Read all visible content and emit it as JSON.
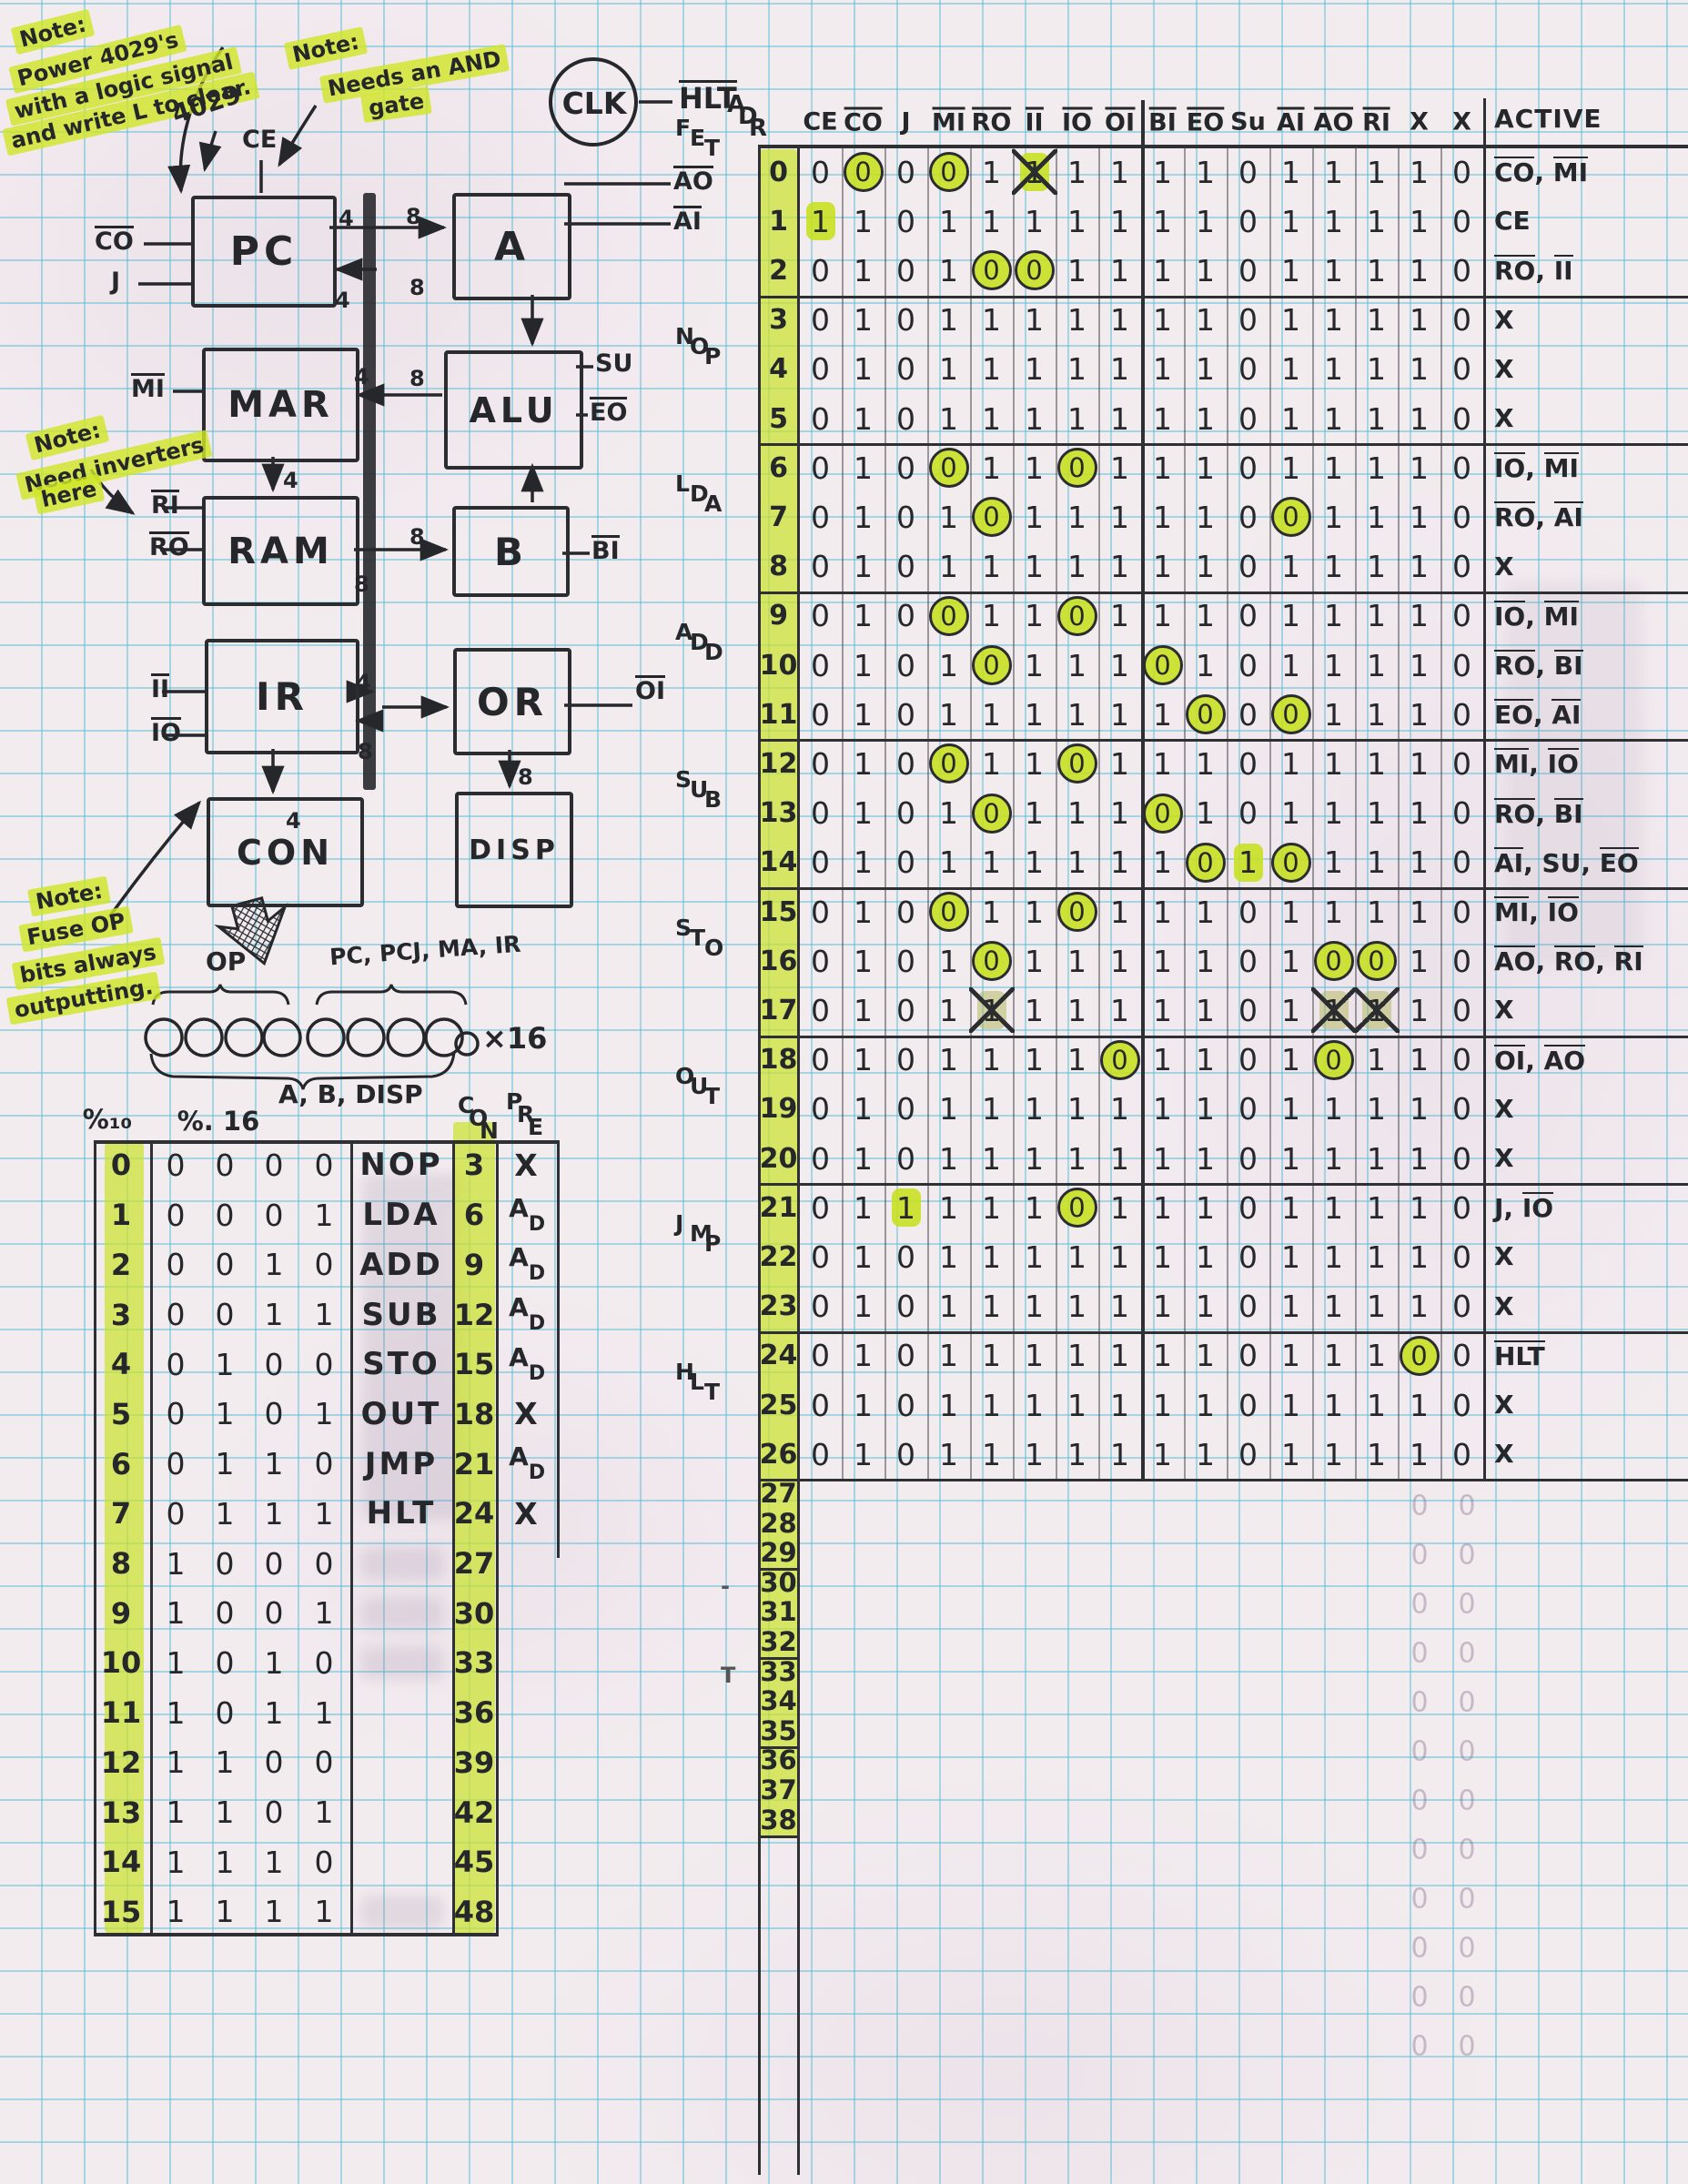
{
  "notes": {
    "power": [
      "Note:",
      "Power 4029's",
      "with a logic signal",
      "and write L to clear."
    ],
    "chip": "4029",
    "and_gate": [
      "Note:",
      "Needs an AND",
      "gate"
    ],
    "inverters": [
      "Note:",
      "Need inverters",
      "here"
    ],
    "fuse": [
      "Note:",
      "Fuse OP",
      "bits always",
      "outputting."
    ]
  },
  "clock": {
    "label": "CLK",
    "halt": "HLT"
  },
  "diagram": {
    "blocks": [
      {
        "id": "pc",
        "label": "PC"
      },
      {
        "id": "a",
        "label": "A"
      },
      {
        "id": "mar",
        "label": "MAR"
      },
      {
        "id": "alu",
        "label": "ALU"
      },
      {
        "id": "ram",
        "label": "RAM"
      },
      {
        "id": "b",
        "label": "B"
      },
      {
        "id": "ir",
        "label": "IR"
      },
      {
        "id": "or",
        "label": "OR"
      },
      {
        "id": "con",
        "label": "CON"
      },
      {
        "id": "disp",
        "label": "DISP"
      }
    ],
    "pins": [
      {
        "id": "ce",
        "t": "CE",
        "o": false
      },
      {
        "id": "co",
        "t": "CO",
        "o": true
      },
      {
        "id": "j",
        "t": "J",
        "o": false
      },
      {
        "id": "ao",
        "t": "AO",
        "o": true
      },
      {
        "id": "ai",
        "t": "AI",
        "o": true
      },
      {
        "id": "mi",
        "t": "MI",
        "o": true
      },
      {
        "id": "su",
        "t": "SU",
        "o": false
      },
      {
        "id": "eo",
        "t": "EO",
        "o": true
      },
      {
        "id": "ri",
        "t": "RI",
        "o": true
      },
      {
        "id": "ro",
        "t": "RO",
        "o": true
      },
      {
        "id": "bi",
        "t": "BI",
        "o": true
      },
      {
        "id": "ii",
        "t": "II",
        "o": true
      },
      {
        "id": "io",
        "t": "IO",
        "o": true
      },
      {
        "id": "oi",
        "t": "OI",
        "o": true
      }
    ],
    "bus_widths": [
      "4",
      "8",
      "8",
      "4",
      "4",
      "8",
      "4",
      "8",
      "8",
      "4",
      "8",
      "4",
      "8"
    ]
  },
  "word_diagram": {
    "op_label": "OP",
    "regs_label": "PC, PCJ, MA, IR",
    "bottom_label": "A, B, DISP",
    "multiplier": "×16",
    "bit_count": 8
  },
  "opcode_table": {
    "dec_header": "%₁₀",
    "hex_header": "%. 16",
    "con_header": "CON",
    "pre_header": "PRE",
    "rows": [
      {
        "dec": "0",
        "bits": [
          "0",
          "0",
          "0",
          "0"
        ],
        "mn": "NOP",
        "con": "3",
        "pre": "X"
      },
      {
        "dec": "1",
        "bits": [
          "0",
          "0",
          "0",
          "1"
        ],
        "mn": "LDA",
        "con": "6",
        "pre": "AD"
      },
      {
        "dec": "2",
        "bits": [
          "0",
          "0",
          "1",
          "0"
        ],
        "mn": "ADD",
        "con": "9",
        "pre": "AD"
      },
      {
        "dec": "3",
        "bits": [
          "0",
          "0",
          "1",
          "1"
        ],
        "mn": "SUB",
        "con": "12",
        "pre": "AD"
      },
      {
        "dec": "4",
        "bits": [
          "0",
          "1",
          "0",
          "0"
        ],
        "mn": "STO",
        "con": "15",
        "pre": "AD"
      },
      {
        "dec": "5",
        "bits": [
          "0",
          "1",
          "0",
          "1"
        ],
        "mn": "OUT",
        "con": "18",
        "pre": "X"
      },
      {
        "dec": "6",
        "bits": [
          "0",
          "1",
          "1",
          "0"
        ],
        "mn": "JMP",
        "con": "21",
        "pre": "AD"
      },
      {
        "dec": "7",
        "bits": [
          "0",
          "1",
          "1",
          "1"
        ],
        "mn": "HLT",
        "con": "24",
        "pre": "X"
      },
      {
        "dec": "8",
        "bits": [
          "1",
          "0",
          "0",
          "0"
        ],
        "mn": "",
        "con": "27",
        "pre": "",
        "ghost": true
      },
      {
        "dec": "9",
        "bits": [
          "1",
          "0",
          "0",
          "1"
        ],
        "mn": "",
        "con": "30",
        "pre": "",
        "ghost": true
      },
      {
        "dec": "10",
        "bits": [
          "1",
          "0",
          "1",
          "0"
        ],
        "mn": "",
        "con": "33",
        "pre": "",
        "ghost": true
      },
      {
        "dec": "11",
        "bits": [
          "1",
          "0",
          "1",
          "1"
        ],
        "mn": "",
        "con": "36",
        "pre": ""
      },
      {
        "dec": "12",
        "bits": [
          "1",
          "1",
          "0",
          "0"
        ],
        "mn": "",
        "con": "39",
        "pre": ""
      },
      {
        "dec": "13",
        "bits": [
          "1",
          "1",
          "0",
          "1"
        ],
        "mn": "",
        "con": "42",
        "pre": ""
      },
      {
        "dec": "14",
        "bits": [
          "1",
          "1",
          "1",
          "0"
        ],
        "mn": "",
        "con": "45",
        "pre": ""
      },
      {
        "dec": "15",
        "bits": [
          "1",
          "1",
          "1",
          "1"
        ],
        "mn": "",
        "con": "48",
        "pre": "",
        "ghost": true
      }
    ]
  },
  "microcode": {
    "adr_header": "ADR",
    "active_header": "ACTIVE",
    "signals": [
      {
        "t": "CE",
        "o": false
      },
      {
        "t": "CO",
        "o": true
      },
      {
        "t": "J",
        "o": false
      },
      {
        "t": "MI",
        "o": true
      },
      {
        "t": "RO",
        "o": true
      },
      {
        "t": "II",
        "o": true
      },
      {
        "t": "IO",
        "o": true
      },
      {
        "t": "OI",
        "o": true
      },
      {
        "t": "BI",
        "o": true
      },
      {
        "t": "EO",
        "o": true
      },
      {
        "t": "Su",
        "o": false
      },
      {
        "t": "AI",
        "o": true
      },
      {
        "t": "AO",
        "o": true
      },
      {
        "t": "RI",
        "o": true
      },
      {
        "t": "X",
        "o": false
      },
      {
        "t": "X",
        "o": false
      }
    ],
    "group_labels": [
      {
        "t": "FET",
        "row": 0
      },
      {
        "t": "NOP",
        "row": 3
      },
      {
        "t": "LDA",
        "row": 6
      },
      {
        "t": "ADD",
        "row": 9
      },
      {
        "t": "SUB",
        "row": 12
      },
      {
        "t": "STO",
        "row": 15
      },
      {
        "t": "OUT",
        "row": 18
      },
      {
        "t": "JMP",
        "row": 21
      },
      {
        "t": "HLT",
        "row": 24
      },
      {
        "t": "-",
        "row": 30
      },
      {
        "t": "T",
        "row": 33
      }
    ],
    "rows": [
      {
        "adr": "0",
        "bits": "0000111111011110",
        "hl": [
          1,
          3,
          5
        ],
        "xk": [
          5
        ],
        "act": [
          {
            "t": "CO",
            "o": true
          },
          {
            "t": "MI",
            "o": true
          }
        ]
      },
      {
        "adr": "1",
        "bits": "1101111111011110",
        "hl": [
          0
        ],
        "act": [
          {
            "t": "CE",
            "o": false
          }
        ]
      },
      {
        "adr": "2",
        "bits": "0101001111011110",
        "hl": [
          4,
          5
        ],
        "act": [
          {
            "t": "RO",
            "o": true
          },
          {
            "t": "II",
            "o": true
          }
        ]
      },
      {
        "adr": "3",
        "bits": "0101111111011110",
        "act": [
          {
            "t": "X",
            "o": false
          }
        ]
      },
      {
        "adr": "4",
        "bits": "0101111111011110",
        "act": [
          {
            "t": "X",
            "o": false
          }
        ]
      },
      {
        "adr": "5",
        "bits": "0101111111011110",
        "act": [
          {
            "t": "X",
            "o": false
          }
        ]
      },
      {
        "adr": "6",
        "bits": "0100110111011110",
        "hl": [
          3,
          6
        ],
        "act": [
          {
            "t": "IO",
            "o": true
          },
          {
            "t": "MI",
            "o": true
          }
        ]
      },
      {
        "adr": "7",
        "bits": "0101011111001110",
        "hl": [
          4,
          11
        ],
        "act": [
          {
            "t": "RO",
            "o": true
          },
          {
            "t": "AI",
            "o": true
          }
        ]
      },
      {
        "adr": "8",
        "bits": "0101111111011110",
        "act": [
          {
            "t": "X",
            "o": false
          }
        ]
      },
      {
        "adr": "9",
        "bits": "0100110111011110",
        "hl": [
          3,
          6
        ],
        "act": [
          {
            "t": "IO",
            "o": true
          },
          {
            "t": "MI",
            "o": true
          }
        ]
      },
      {
        "adr": "10",
        "bits": "0101011101011110",
        "hl": [
          4,
          8
        ],
        "act": [
          {
            "t": "RO",
            "o": true
          },
          {
            "t": "BI",
            "o": true
          }
        ]
      },
      {
        "adr": "11",
        "bits": "0101111110001110",
        "hl": [
          9,
          11
        ],
        "act": [
          {
            "t": "EO",
            "o": true
          },
          {
            "t": "AI",
            "o": true
          }
        ]
      },
      {
        "adr": "12",
        "bits": "0100110111011110",
        "hl": [
          3,
          6
        ],
        "act": [
          {
            "t": "MI",
            "o": true
          },
          {
            "t": "IO",
            "o": true
          }
        ]
      },
      {
        "adr": "13",
        "bits": "0101011101011110",
        "hl": [
          4,
          8
        ],
        "act": [
          {
            "t": "RO",
            "o": true
          },
          {
            "t": "BI",
            "o": true
          }
        ]
      },
      {
        "adr": "14",
        "bits": "0101111110101110",
        "hl": [
          9,
          10,
          11
        ],
        "act": [
          {
            "t": "AI",
            "o": true
          },
          {
            "t": "SU",
            "o": false
          },
          {
            "t": "EO",
            "o": true
          }
        ]
      },
      {
        "adr": "15",
        "bits": "0100110111011110",
        "hl": [
          3,
          6
        ],
        "act": [
          {
            "t": "MI",
            "o": true
          },
          {
            "t": "IO",
            "o": true
          }
        ]
      },
      {
        "adr": "16",
        "bits": "0101011111010010",
        "hl": [
          4,
          12,
          13
        ],
        "act": [
          {
            "t": "AO",
            "o": true
          },
          {
            "t": "RO",
            "o": true
          },
          {
            "t": "RI",
            "o": true
          }
        ]
      },
      {
        "adr": "17",
        "bits": "0101111111011110",
        "dim": [
          4,
          12,
          13
        ],
        "xk": [
          4,
          12,
          13
        ],
        "act": [
          {
            "t": "X",
            "o": false
          }
        ]
      },
      {
        "adr": "18",
        "bits": "0101111011010110",
        "hl": [
          7,
          12
        ],
        "act": [
          {
            "t": "OI",
            "o": true
          },
          {
            "t": "AO",
            "o": true
          }
        ]
      },
      {
        "adr": "19",
        "bits": "0101111111011110",
        "act": [
          {
            "t": "X",
            "o": false
          }
        ]
      },
      {
        "adr": "20",
        "bits": "0101111111011110",
        "act": [
          {
            "t": "X",
            "o": false
          }
        ]
      },
      {
        "adr": "21",
        "bits": "0111110111011110",
        "hl": [
          2,
          6
        ],
        "act": [
          {
            "t": "J",
            "o": false
          },
          {
            "t": "IO",
            "o": true
          }
        ]
      },
      {
        "adr": "22",
        "bits": "0101111111011110",
        "act": [
          {
            "t": "X",
            "o": false
          }
        ]
      },
      {
        "adr": "23",
        "bits": "0101111111011110",
        "act": [
          {
            "t": "X",
            "o": false
          }
        ]
      },
      {
        "adr": "24",
        "bits": "0101111111011100",
        "hl": [
          14
        ],
        "act": [
          {
            "t": "HLT",
            "o": true
          }
        ]
      },
      {
        "adr": "25",
        "bits": "0101111111011110",
        "act": [
          {
            "t": "X",
            "o": false
          }
        ]
      },
      {
        "adr": "26",
        "bits": "0101111111011110",
        "act": [
          {
            "t": "X",
            "o": false
          }
        ]
      }
    ],
    "adr_only": [
      "27",
      "28",
      "29",
      "30",
      "31",
      "32",
      "33",
      "34",
      "35",
      "36",
      "37",
      "38"
    ],
    "ghost_value": "0"
  }
}
